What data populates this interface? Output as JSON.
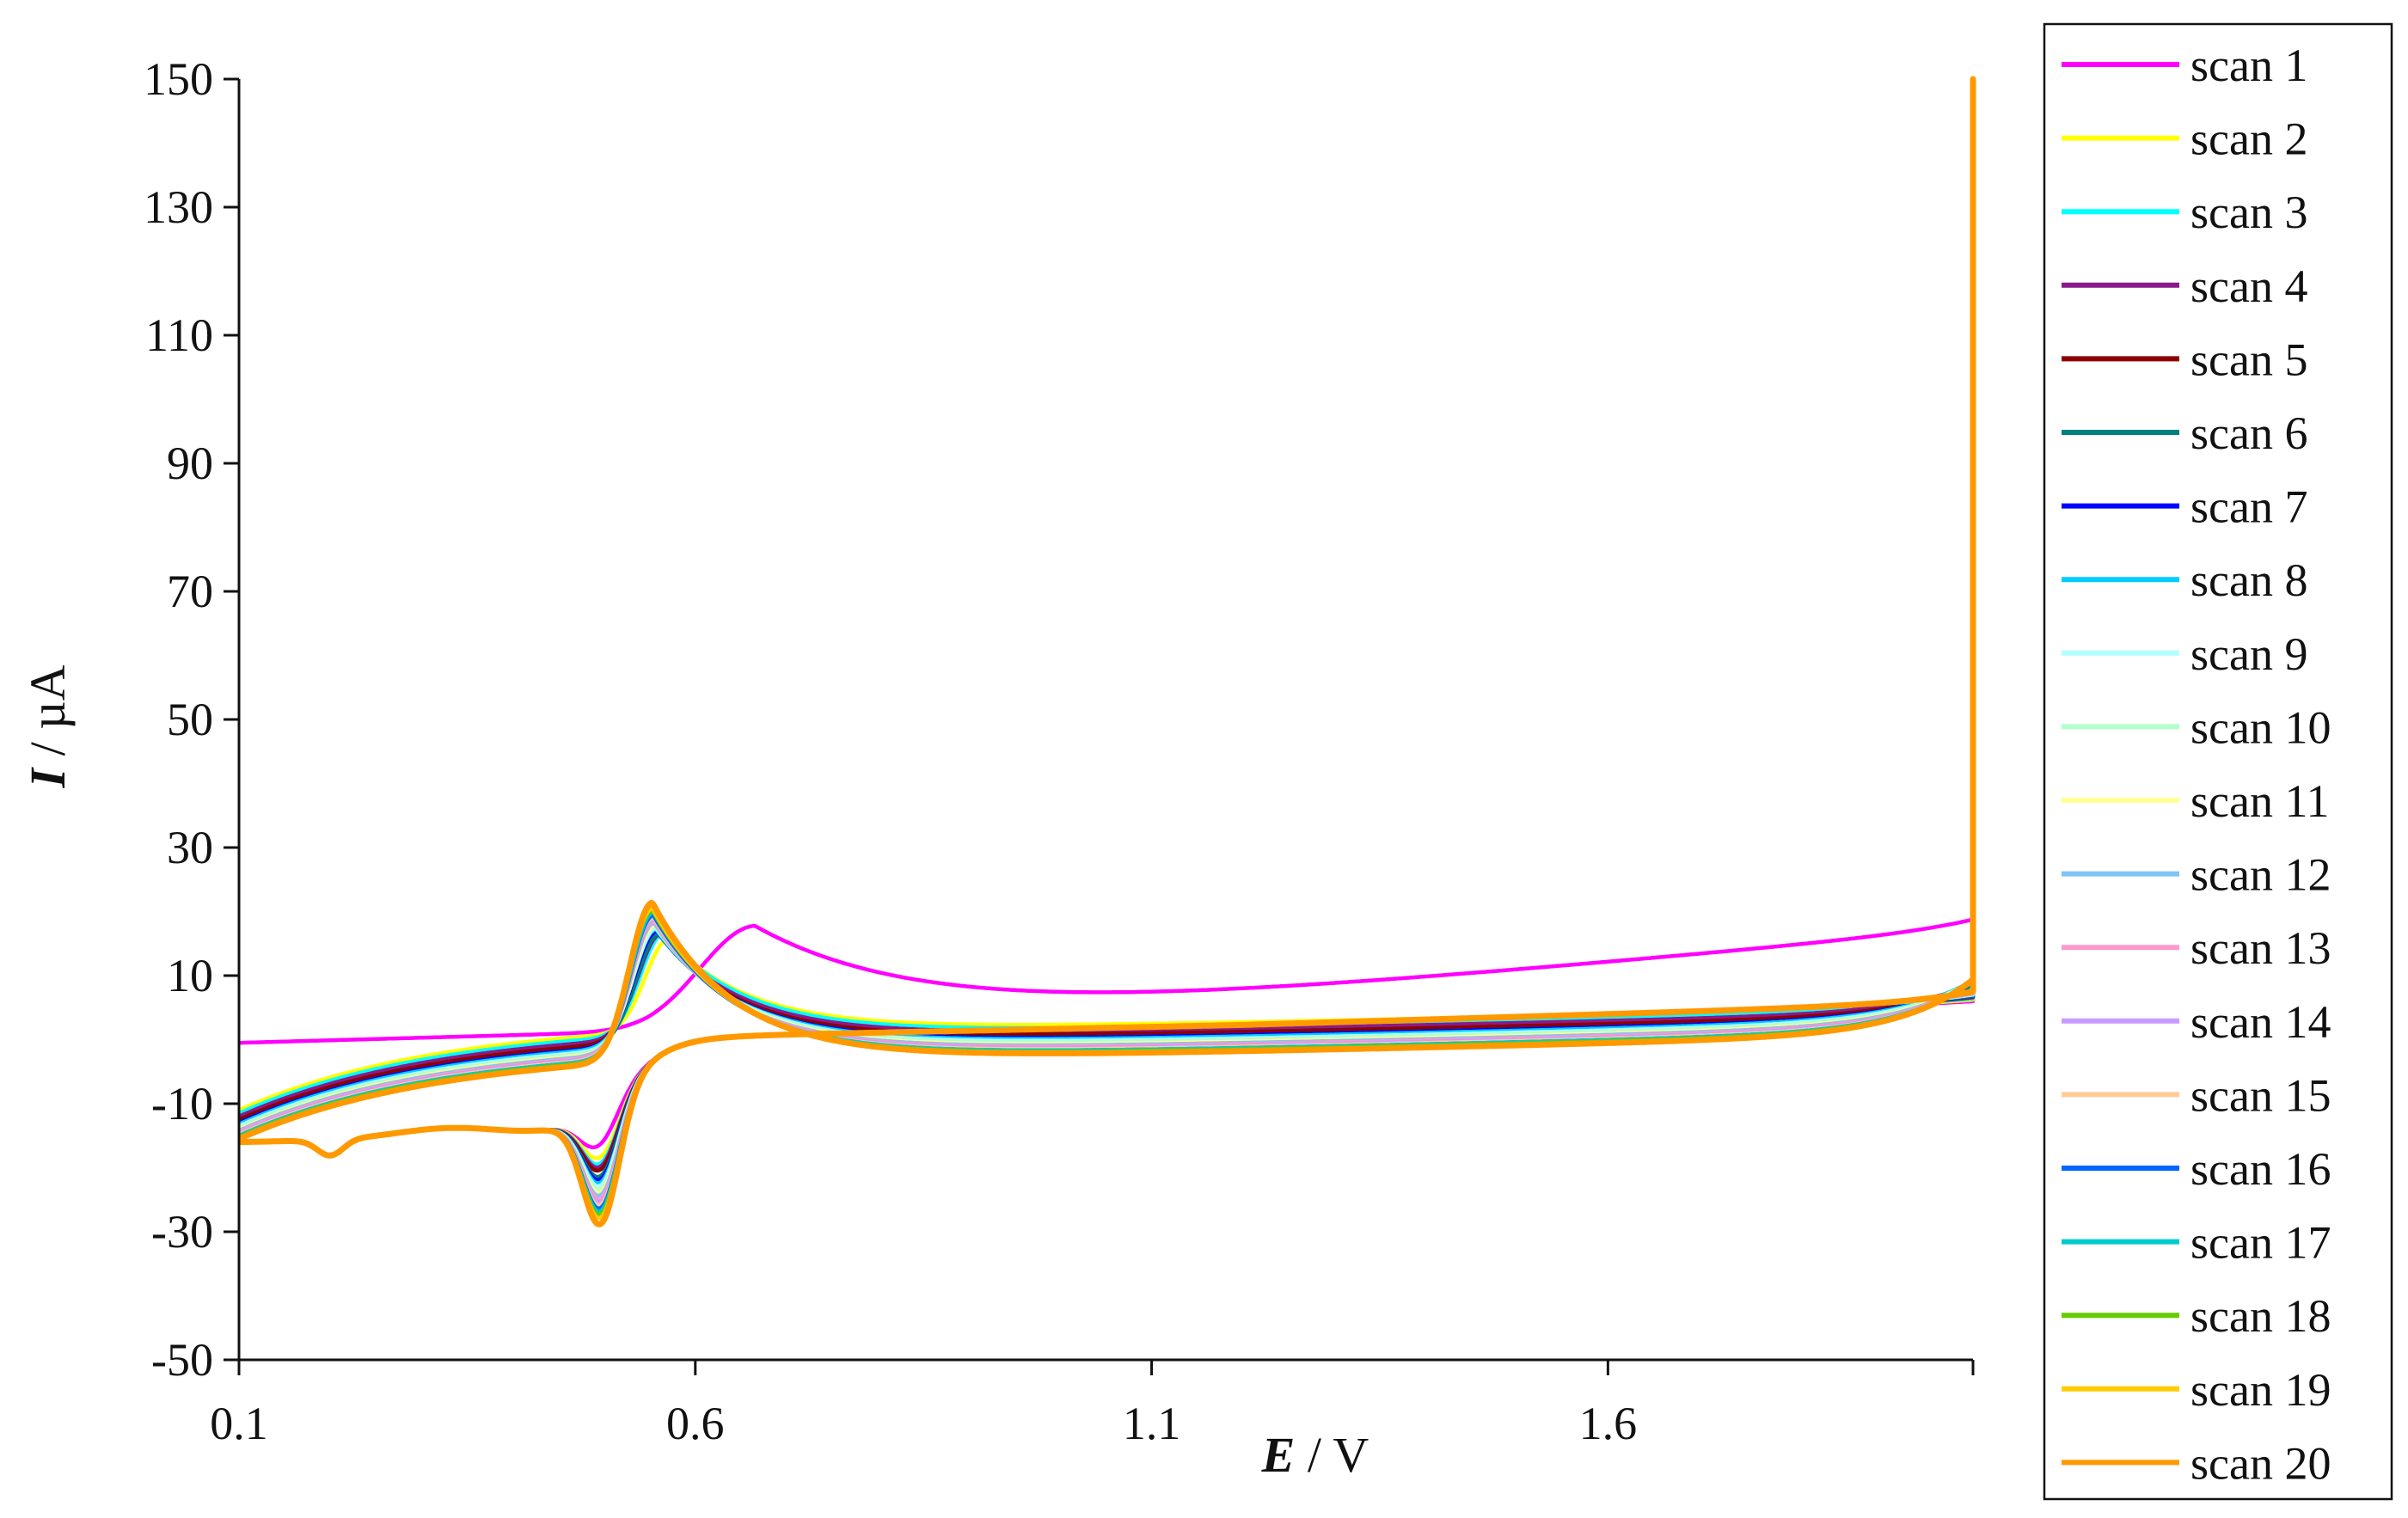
{
  "chart_data": {
    "type": "line",
    "title": "",
    "xlabel": {
      "var": "E",
      "unit": " / V"
    },
    "ylabel": {
      "var": "I",
      "unit": " / µA"
    },
    "xlim": [
      0.1,
      2.0
    ],
    "ylim": [
      -50,
      150
    ],
    "x_ticks": [
      0.1,
      0.6,
      1.1,
      1.6
    ],
    "y_ticks": [
      -50,
      -30,
      -10,
      10,
      30,
      50,
      70,
      90,
      110,
      130,
      150
    ],
    "grid": false,
    "legend_position": "right",
    "scan_start": 0.1,
    "anodic_limit": 2.0,
    "series": [
      {
        "name": "scan 1",
        "color": "#FF00FF",
        "peak_a": [
          0.665,
          25.0
        ],
        "peak_c": [
          0.495,
          -19.0
        ],
        "upturn": 1.965,
        "start_i": -0.5
      },
      {
        "name": "scan 2",
        "color": "#FFFF00",
        "peak_a": [
          0.57,
          24.0
        ],
        "peak_c": [
          0.497,
          -21.0
        ],
        "upturn": 1.925,
        "start_i": -11.0
      },
      {
        "name": "scan 3",
        "color": "#00FFFF",
        "peak_a": [
          0.565,
          25.5
        ],
        "peak_c": [
          0.497,
          -22.0
        ],
        "upturn": 1.9,
        "start_i": -11.5
      },
      {
        "name": "scan 4",
        "color": "#8B1A89",
        "peak_a": [
          0.562,
          26.0
        ],
        "peak_c": [
          0.497,
          -22.5
        ],
        "upturn": 1.885,
        "start_i": -12.0
      },
      {
        "name": "scan 5",
        "color": "#8B0000",
        "peak_a": [
          0.56,
          26.5
        ],
        "peak_c": [
          0.497,
          -23.0
        ],
        "upturn": 1.875,
        "start_i": -12.5
      },
      {
        "name": "scan 6",
        "color": "#00807F",
        "peak_a": [
          0.56,
          27.0
        ],
        "peak_c": [
          0.497,
          -24.0
        ],
        "upturn": 1.87,
        "start_i": -13.0
      },
      {
        "name": "scan 7",
        "color": "#0000FF",
        "peak_a": [
          0.558,
          27.5
        ],
        "peak_c": [
          0.497,
          -24.5
        ],
        "upturn": 1.862,
        "start_i": -13.0
      },
      {
        "name": "scan 8",
        "color": "#00CCFF",
        "peak_a": [
          0.557,
          28.0
        ],
        "peak_c": [
          0.497,
          -25.0
        ],
        "upturn": 1.858,
        "start_i": -13.2
      },
      {
        "name": "scan 9",
        "color": "#B3FFFF",
        "peak_a": [
          0.557,
          28.5
        ],
        "peak_c": [
          0.497,
          -25.5
        ],
        "upturn": 1.855,
        "start_i": -13.5
      },
      {
        "name": "scan 10",
        "color": "#B3FFCC",
        "peak_a": [
          0.556,
          29.0
        ],
        "peak_c": [
          0.497,
          -26.0
        ],
        "upturn": 1.852,
        "start_i": -13.7
      },
      {
        "name": "scan 11",
        "color": "#FFFF99",
        "peak_a": [
          0.556,
          29.5
        ],
        "peak_c": [
          0.497,
          -26.5
        ],
        "upturn": 1.85,
        "start_i": -14.0
      },
      {
        "name": "scan 12",
        "color": "#7FC4F5",
        "peak_a": [
          0.555,
          30.0
        ],
        "peak_c": [
          0.497,
          -27.0
        ],
        "upturn": 1.848,
        "start_i": -14.2
      },
      {
        "name": "scan 13",
        "color": "#FF99CC",
        "peak_a": [
          0.555,
          30.5
        ],
        "peak_c": [
          0.497,
          -27.5
        ],
        "upturn": 1.846,
        "start_i": -14.4
      },
      {
        "name": "scan 14",
        "color": "#CC99FF",
        "peak_a": [
          0.555,
          31.0
        ],
        "peak_c": [
          0.497,
          -28.0
        ],
        "upturn": 1.844,
        "start_i": -14.6
      },
      {
        "name": "scan 15",
        "color": "#FFCC99",
        "peak_a": [
          0.554,
          31.5
        ],
        "peak_c": [
          0.497,
          -28.5
        ],
        "upturn": 1.842,
        "start_i": -14.8
      },
      {
        "name": "scan 16",
        "color": "#0066FF",
        "peak_a": [
          0.554,
          32.0
        ],
        "peak_c": [
          0.497,
          -29.0
        ],
        "upturn": 1.84,
        "start_i": -15.0
      },
      {
        "name": "scan 17",
        "color": "#00CCCC",
        "peak_a": [
          0.554,
          32.5
        ],
        "peak_c": [
          0.497,
          -29.5
        ],
        "upturn": 1.838,
        "start_i": -15.0
      },
      {
        "name": "scan 18",
        "color": "#66CC00",
        "peak_a": [
          0.553,
          33.0
        ],
        "peak_c": [
          0.497,
          -30.0
        ],
        "upturn": 1.836,
        "start_i": -15.2
      },
      {
        "name": "scan 19",
        "color": "#FFCC00",
        "peak_a": [
          0.553,
          33.5
        ],
        "peak_c": [
          0.497,
          -30.5
        ],
        "upturn": 1.834,
        "start_i": -15.4
      },
      {
        "name": "scan 20",
        "color": "#FF9900",
        "peak_a": [
          0.553,
          34.5
        ],
        "peak_c": [
          0.497,
          -31.5
        ],
        "upturn": 1.832,
        "start_i": -15.5
      }
    ]
  }
}
